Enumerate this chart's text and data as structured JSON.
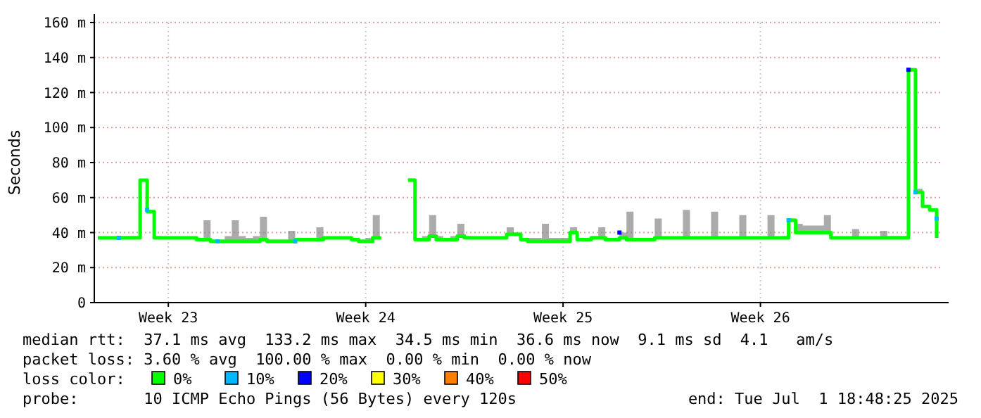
{
  "chart_data": {
    "type": "step",
    "ylabel": "Seconds",
    "categories": [
      null,
      null,
      null,
      null,
      null,
      null,
      null,
      null,
      null,
      null,
      "Week 23",
      null,
      null,
      null,
      null,
      null,
      null,
      null,
      null,
      null,
      null,
      null,
      null,
      null,
      null,
      null,
      null,
      null,
      null,
      null,
      null,
      null,
      null,
      null,
      null,
      null,
      null,
      null,
      "Week 24",
      null,
      null,
      null,
      null,
      null,
      null,
      null,
      null,
      null,
      null,
      null,
      null,
      null,
      null,
      null,
      null,
      null,
      null,
      null,
      null,
      null,
      null,
      null,
      null,
      null,
      null,
      null,
      "Week 25",
      null,
      null,
      null,
      null,
      null,
      null,
      null,
      null,
      null,
      null,
      null,
      null,
      null,
      null,
      null,
      null,
      null,
      null,
      null,
      null,
      null,
      null,
      null,
      null,
      null,
      null,
      null,
      "Week 26",
      null,
      null,
      null,
      null,
      null,
      null,
      null,
      null,
      null,
      null,
      null,
      null,
      null,
      null,
      null,
      null,
      null,
      null,
      null,
      null,
      null,
      null,
      null,
      null,
      null
    ],
    "ylim": [
      0,
      160
    ],
    "yticks": [
      {
        "value": 0,
        "label": "0"
      },
      {
        "value": 20,
        "label": "20 m"
      },
      {
        "value": 40,
        "label": "40 m"
      },
      {
        "value": 60,
        "label": "60 m"
      },
      {
        "value": 80,
        "label": "80 m"
      },
      {
        "value": 100,
        "label": "100 m"
      },
      {
        "value": 120,
        "label": "120 m"
      },
      {
        "value": 140,
        "label": "140 m"
      },
      {
        "value": 160,
        "label": "160 m"
      }
    ],
    "grid": true,
    "legend": "bottom",
    "legend_title": "loss color:",
    "series": [
      {
        "name": "0%",
        "color": "#00ff00",
        "values": [
          37,
          37,
          37,
          37,
          37,
          37,
          70,
          52,
          37,
          37,
          37,
          37,
          37,
          37,
          36,
          36,
          35,
          35,
          35,
          35,
          35,
          35,
          35,
          36,
          35,
          35,
          35,
          35,
          36,
          36,
          36,
          36,
          37,
          37,
          37,
          37,
          36,
          35,
          35,
          37,
          36,
          null,
          null,
          null,
          70,
          36,
          36,
          38,
          36,
          36,
          36,
          38,
          37,
          37,
          37,
          37,
          37,
          37,
          39,
          39,
          36,
          35,
          35,
          35,
          35,
          35,
          35,
          40,
          36,
          36,
          37,
          37,
          36,
          36,
          37,
          36,
          36,
          36,
          36,
          37,
          37,
          37,
          37,
          37,
          37,
          37,
          37,
          37,
          37,
          37,
          37,
          37,
          37,
          37,
          37,
          37,
          37,
          37,
          47,
          40,
          40,
          40,
          40,
          40,
          37,
          37,
          37,
          37,
          37,
          37,
          37,
          37,
          37,
          37,
          37,
          133,
          63,
          55,
          53,
          37
        ],
        "lower": [
          37,
          37,
          37,
          37,
          37,
          37,
          70,
          52,
          37,
          37,
          37,
          37,
          37,
          37,
          36,
          36,
          35,
          35,
          35,
          35,
          35,
          35,
          35,
          36,
          35,
          35,
          35,
          35,
          36,
          36,
          36,
          36,
          37,
          37,
          37,
          37,
          36,
          35,
          35,
          37,
          36,
          null,
          null,
          null,
          70,
          36,
          36,
          38,
          36,
          36,
          36,
          38,
          37,
          37,
          37,
          37,
          37,
          37,
          39,
          39,
          36,
          35,
          35,
          35,
          35,
          35,
          35,
          40,
          36,
          36,
          37,
          37,
          36,
          36,
          37,
          36,
          36,
          36,
          36,
          37,
          37,
          37,
          37,
          37,
          37,
          37,
          37,
          37,
          37,
          37,
          37,
          37,
          37,
          37,
          37,
          37,
          37,
          37,
          47,
          40,
          40,
          40,
          40,
          40,
          37,
          37,
          37,
          37,
          37,
          37,
          37,
          37,
          37,
          37,
          37,
          133,
          63,
          55,
          53,
          37
        ],
        "upper": [
          37,
          37,
          37,
          38,
          38,
          38,
          70,
          53,
          38,
          37,
          37,
          37,
          37,
          37,
          37,
          47,
          36,
          36,
          38,
          47,
          38,
          37,
          38,
          49,
          36,
          36,
          36,
          41,
          37,
          37,
          37,
          43,
          37,
          37,
          37,
          37,
          37,
          36,
          37,
          50,
          37,
          null,
          null,
          null,
          71,
          37,
          38,
          50,
          38,
          37,
          38,
          45,
          38,
          37,
          37,
          37,
          37,
          37,
          43,
          40,
          37,
          37,
          37,
          45,
          37,
          37,
          37,
          43,
          37,
          37,
          38,
          43,
          37,
          37,
          40,
          52,
          37,
          37,
          37,
          48,
          37,
          37,
          37,
          53,
          37,
          37,
          37,
          52,
          37,
          37,
          37,
          50,
          37,
          37,
          37,
          50,
          37,
          38,
          48,
          45,
          44,
          44,
          44,
          50,
          37,
          37,
          37,
          42,
          37,
          37,
          37,
          41,
          38,
          38,
          38,
          134,
          65,
          55,
          53,
          48
        ]
      },
      {
        "name": "10%",
        "color": "#00b8ff",
        "type": "scatter",
        "marker": "square",
        "values": [
          null,
          null,
          null,
          37,
          null,
          null,
          null,
          53,
          null,
          null,
          null,
          null,
          null,
          null,
          null,
          null,
          null,
          35,
          null,
          null,
          null,
          null,
          null,
          null,
          null,
          null,
          null,
          null,
          35,
          null,
          null,
          null,
          null,
          null,
          null,
          null,
          null,
          null,
          null,
          null,
          null,
          null,
          null,
          null,
          null,
          null,
          null,
          null,
          null,
          null,
          null,
          null,
          null,
          null,
          null,
          null,
          null,
          null,
          null,
          null,
          null,
          null,
          null,
          null,
          null,
          null,
          null,
          null,
          null,
          null,
          null,
          null,
          null,
          null,
          null,
          null,
          null,
          null,
          null,
          null,
          null,
          null,
          null,
          null,
          null,
          null,
          null,
          null,
          null,
          null,
          null,
          null,
          null,
          null,
          null,
          null,
          null,
          null,
          47,
          null,
          null,
          null,
          null,
          null,
          null,
          null,
          null,
          null,
          null,
          null,
          null,
          null,
          null,
          null,
          null,
          null,
          63,
          null,
          null,
          48
        ]
      },
      {
        "name": "20%",
        "color": "#0000ff",
        "type": "scatter",
        "marker": "square",
        "values": [
          null,
          null,
          null,
          null,
          null,
          null,
          null,
          null,
          null,
          null,
          null,
          null,
          null,
          null,
          null,
          null,
          null,
          null,
          null,
          null,
          null,
          null,
          null,
          null,
          null,
          null,
          null,
          null,
          null,
          null,
          null,
          null,
          null,
          null,
          null,
          null,
          null,
          null,
          null,
          null,
          null,
          null,
          null,
          null,
          null,
          null,
          null,
          null,
          null,
          null,
          null,
          null,
          null,
          null,
          null,
          null,
          null,
          null,
          null,
          null,
          null,
          null,
          null,
          null,
          null,
          null,
          null,
          null,
          null,
          null,
          null,
          null,
          null,
          null,
          40,
          null,
          null,
          null,
          null,
          null,
          null,
          null,
          null,
          null,
          null,
          null,
          null,
          null,
          null,
          null,
          null,
          null,
          null,
          null,
          null,
          null,
          null,
          null,
          null,
          null,
          null,
          null,
          null,
          null,
          null,
          null,
          null,
          null,
          null,
          null,
          null,
          null,
          null,
          null,
          null,
          133,
          null,
          null,
          null,
          null
        ]
      },
      {
        "name": "30%",
        "color": "#ffff00",
        "type": "scatter",
        "marker": "square",
        "values": [
          null,
          null,
          null,
          null,
          null,
          null,
          null,
          null,
          null,
          null,
          null,
          null,
          null,
          null,
          null,
          null,
          null,
          null,
          null,
          null,
          null,
          null,
          null,
          null,
          null,
          null,
          null,
          null,
          null,
          null,
          null,
          null,
          null,
          null,
          null,
          null,
          null,
          null,
          null,
          null,
          null,
          null,
          null,
          null,
          null,
          null,
          null,
          null,
          null,
          null,
          null,
          null,
          null,
          null,
          null,
          null,
          null,
          null,
          null,
          null,
          null,
          null,
          null,
          null,
          null,
          null,
          null,
          null,
          null,
          null,
          null,
          null,
          null,
          null,
          null,
          null,
          null,
          null,
          null,
          null,
          null,
          null,
          null,
          null,
          null,
          null,
          null,
          null,
          null,
          null,
          null,
          null,
          null,
          null,
          null,
          null,
          null,
          null,
          null,
          null,
          null,
          null,
          null,
          null,
          null,
          null,
          null,
          null,
          null,
          null,
          null,
          null,
          null,
          null,
          null,
          null,
          null,
          null,
          null,
          null
        ]
      },
      {
        "name": "40%",
        "color": "#ff8000",
        "type": "scatter",
        "marker": "square",
        "values": [
          null,
          null,
          null,
          null,
          null,
          null,
          null,
          null,
          null,
          null,
          null,
          null,
          null,
          null,
          null,
          null,
          null,
          null,
          null,
          null,
          null,
          null,
          null,
          null,
          null,
          null,
          null,
          null,
          null,
          null,
          null,
          null,
          null,
          null,
          null,
          null,
          null,
          null,
          null,
          null,
          null,
          null,
          null,
          null,
          null,
          null,
          null,
          null,
          null,
          null,
          null,
          null,
          null,
          null,
          null,
          null,
          null,
          null,
          null,
          null,
          null,
          null,
          null,
          null,
          null,
          null,
          null,
          null,
          null,
          null,
          null,
          null,
          null,
          null,
          null,
          null,
          null,
          null,
          null,
          null,
          null,
          null,
          null,
          null,
          null,
          null,
          null,
          null,
          null,
          null,
          null,
          null,
          null,
          null,
          null,
          null,
          null,
          null,
          null,
          null,
          null,
          null,
          null,
          null,
          null,
          null,
          null,
          null,
          null,
          null,
          null,
          null,
          null,
          null,
          null,
          null,
          null,
          null,
          null,
          null
        ]
      },
      {
        "name": "50%",
        "color": "#ff0000",
        "type": "scatter",
        "marker": "square",
        "values": [
          null,
          null,
          null,
          null,
          null,
          null,
          null,
          null,
          null,
          null,
          null,
          null,
          null,
          null,
          null,
          null,
          null,
          null,
          null,
          null,
          null,
          null,
          null,
          null,
          null,
          null,
          null,
          null,
          null,
          null,
          null,
          null,
          null,
          null,
          null,
          null,
          null,
          null,
          null,
          null,
          null,
          null,
          null,
          null,
          null,
          null,
          null,
          null,
          null,
          null,
          null,
          null,
          null,
          null,
          null,
          null,
          null,
          null,
          null,
          null,
          null,
          null,
          null,
          null,
          null,
          null,
          null,
          null,
          null,
          null,
          null,
          null,
          null,
          null,
          null,
          null,
          null,
          null,
          null,
          null,
          null,
          null,
          null,
          null,
          null,
          null,
          null,
          null,
          null,
          null,
          null,
          null,
          null,
          null,
          null,
          null,
          null,
          null,
          null,
          null,
          null,
          null,
          null,
          null,
          null,
          null,
          null,
          null,
          null,
          null,
          null,
          null,
          null,
          null,
          null,
          null,
          null,
          null,
          null,
          null
        ]
      }
    ],
    "annotations": [
      "median rtt:  37.1 ms avg  133.2 ms max  34.5 ms min  36.6 ms now  9.1 ms sd  4.1   am/s",
      "packet loss: 3.60 % avg  100.00 % max  0.00 % min  0.00 % now",
      "probe:       10 ICMP Echo Pings (56 Bytes) every 120s",
      "end: Tue Jul  1 18:48:25 2025"
    ]
  }
}
